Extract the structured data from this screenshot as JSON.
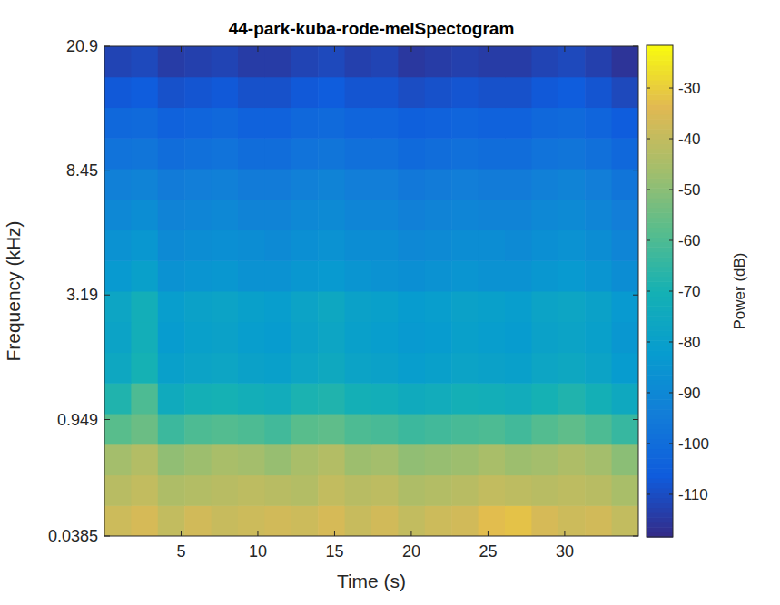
{
  "chart_data": {
    "type": "heatmap",
    "title": "44-park-kuba-rode-melSpectogram",
    "x_label": "Time (s)",
    "y_label": "Frequency (kHz)",
    "xlim": [
      0,
      34.8
    ],
    "xticks": [
      5,
      10,
      15,
      20,
      25,
      30
    ],
    "ylim": [
      0.0385,
      20.9
    ],
    "yticks": [
      0.0385,
      0.949,
      3.19,
      8.45,
      20.9
    ],
    "x_edges": [
      0,
      1.74,
      3.48,
      5.22,
      6.96,
      8.7,
      10.44,
      12.18,
      13.92,
      15.66,
      17.4,
      19.14,
      20.88,
      22.62,
      24.36,
      26.1,
      27.84,
      29.58,
      31.32,
      33.06,
      34.8
    ],
    "y_edges": [
      0.0385,
      0.212,
      0.426,
      0.691,
      1.018,
      1.422,
      1.92,
      2.536,
      3.297,
      4.233,
      5.392,
      6.824,
      8.593,
      10.78,
      13.47,
      16.8,
      20.9
    ],
    "cells": [
      [
        -38,
        -36,
        -40,
        -37,
        -39,
        -38,
        -37,
        -38,
        -36,
        -39,
        -37,
        -40,
        -38,
        -37,
        -33,
        -32,
        -36,
        -38,
        -37,
        -40
      ],
      [
        -42,
        -40,
        -44,
        -43,
        -42,
        -41,
        -42,
        -43,
        -40,
        -42,
        -41,
        -44,
        -43,
        -42,
        -40,
        -41,
        -42,
        -41,
        -42,
        -45
      ],
      [
        -46,
        -43,
        -49,
        -47,
        -45,
        -46,
        -48,
        -45,
        -43,
        -47,
        -46,
        -49,
        -48,
        -47,
        -45,
        -47,
        -46,
        -44,
        -46,
        -50
      ],
      [
        -58,
        -55,
        -63,
        -60,
        -59,
        -60,
        -62,
        -58,
        -57,
        -60,
        -61,
        -63,
        -62,
        -61,
        -60,
        -62,
        -59,
        -57,
        -60,
        -64
      ],
      [
        -68,
        -60,
        -74,
        -71,
        -70,
        -72,
        -73,
        -69,
        -68,
        -71,
        -72,
        -74,
        -73,
        -71,
        -72,
        -73,
        -70,
        -68,
        -71,
        -75
      ],
      [
        -76,
        -70,
        -80,
        -78,
        -77,
        -79,
        -80,
        -77,
        -75,
        -78,
        -79,
        -81,
        -80,
        -78,
        -79,
        -80,
        -77,
        -76,
        -78,
        -82
      ],
      [
        -78,
        -72,
        -82,
        -80,
        -79,
        -81,
        -82,
        -79,
        -77,
        -80,
        -81,
        -83,
        -82,
        -80,
        -81,
        -82,
        -79,
        -78,
        -80,
        -84
      ],
      [
        -77,
        -72,
        -81,
        -79,
        -78,
        -80,
        -81,
        -78,
        -76,
        -79,
        -80,
        -82,
        -81,
        -79,
        -80,
        -81,
        -78,
        -77,
        -79,
        -83
      ],
      [
        -83,
        -80,
        -86,
        -85,
        -84,
        -86,
        -86,
        -84,
        -83,
        -85,
        -86,
        -87,
        -86,
        -85,
        -86,
        -86,
        -84,
        -83,
        -85,
        -88
      ],
      [
        -86,
        -84,
        -89,
        -88,
        -87,
        -88,
        -89,
        -87,
        -86,
        -88,
        -88,
        -90,
        -89,
        -88,
        -88,
        -89,
        -87,
        -86,
        -88,
        -91
      ],
      [
        -90,
        -88,
        -92,
        -91,
        -90,
        -92,
        -92,
        -90,
        -89,
        -91,
        -91,
        -93,
        -92,
        -91,
        -92,
        -92,
        -90,
        -89,
        -91,
        -94
      ],
      [
        -93,
        -92,
        -95,
        -94,
        -93,
        -95,
        -95,
        -93,
        -92,
        -94,
        -94,
        -96,
        -95,
        -94,
        -95,
        -95,
        -93,
        -92,
        -94,
        -97
      ],
      [
        -98,
        -97,
        -100,
        -99,
        -98,
        -100,
        -100,
        -98,
        -97,
        -99,
        -99,
        -101,
        -100,
        -99,
        -100,
        -100,
        -98,
        -97,
        -99,
        -102
      ],
      [
        -102,
        -101,
        -104,
        -103,
        -102,
        -104,
        -104,
        -102,
        -101,
        -103,
        -103,
        -105,
        -104,
        -103,
        -104,
        -104,
        -102,
        -101,
        -103,
        -106
      ],
      [
        -107,
        -106,
        -109,
        -108,
        -107,
        -109,
        -109,
        -107,
        -106,
        -108,
        -108,
        -110,
        -109,
        -108,
        -109,
        -109,
        -107,
        -106,
        -108,
        -111
      ],
      [
        -112,
        -111,
        -114,
        -113,
        -112,
        -114,
        -114,
        -112,
        -111,
        -113,
        -112,
        -115,
        -114,
        -113,
        -114,
        -114,
        -112,
        -111,
        -113,
        -116
      ]
    ],
    "colorbar": {
      "label": "Power (dB)",
      "lim": [
        -118.4,
        -21.6
      ],
      "ticks": [
        -110,
        -100,
        -90,
        -80,
        -70,
        -60,
        -50,
        -40,
        -30
      ]
    }
  }
}
